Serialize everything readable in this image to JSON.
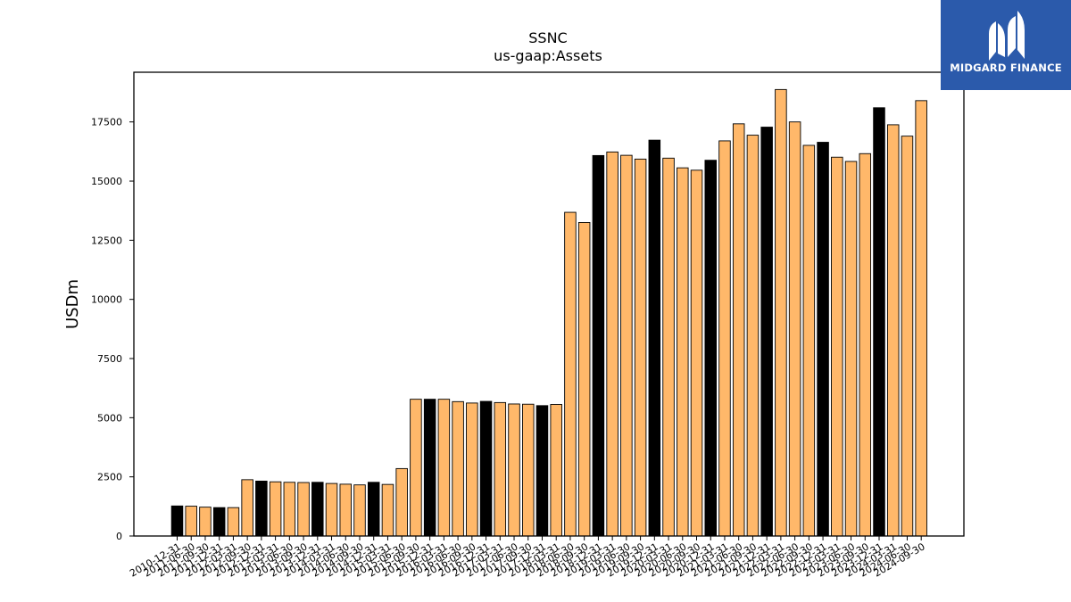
{
  "brand": {
    "name": "MIDGARD FINANCE",
    "background": "#2b5aab",
    "icon": "midgard-logo-icon"
  },
  "colors": {
    "quarter_bar": "#ffb86a",
    "year_end_bar": "#000000"
  },
  "chart_data": {
    "type": "bar",
    "title": "SSNC",
    "subtitle": "us-gaap:Assets",
    "xlabel": "",
    "ylabel": "USDm",
    "ylim": [
      0,
      19600
    ],
    "yticks": [
      0,
      2500,
      5000,
      7500,
      10000,
      12500,
      15000,
      17500
    ],
    "grid": false,
    "categories": [
      "2010-12-31",
      "2011-06-30",
      "2011-09-30",
      "2011-12-31",
      "2012-03-31",
      "2012-09-30",
      "2012-12-31",
      "2013-03-31",
      "2013-06-30",
      "2013-09-30",
      "2013-12-31",
      "2014-03-31",
      "2014-06-30",
      "2014-09-30",
      "2014-12-31",
      "2015-03-31",
      "2015-06-30",
      "2015-09-30",
      "2015-12-31",
      "2016-03-31",
      "2016-06-30",
      "2016-09-30",
      "2016-12-31",
      "2017-03-31",
      "2017-06-30",
      "2017-09-30",
      "2017-12-31",
      "2018-03-31",
      "2018-06-30",
      "2018-09-30",
      "2018-12-31",
      "2019-03-31",
      "2019-06-30",
      "2019-09-30",
      "2019-12-31",
      "2020-03-31",
      "2020-06-30",
      "2020-09-30",
      "2020-12-31",
      "2021-03-31",
      "2021-06-30",
      "2021-09-30",
      "2021-12-31",
      "2022-03-31",
      "2022-06-30",
      "2022-09-30",
      "2022-12-31",
      "2023-03-31",
      "2023-06-30",
      "2023-09-30",
      "2023-12-31",
      "2024-03-31",
      "2024-06-30",
      "2024-09-30"
    ],
    "values": [
      1270,
      1260,
      1220,
      1200,
      1200,
      2380,
      2320,
      2290,
      2270,
      2260,
      2270,
      2220,
      2190,
      2160,
      2270,
      2180,
      2850,
      5780,
      5780,
      5780,
      5680,
      5620,
      5690,
      5640,
      5580,
      5570,
      5510,
      5560,
      13680,
      13250,
      16080,
      16230,
      16090,
      15930,
      16730,
      15970,
      15560,
      15460,
      15880,
      16700,
      17420,
      16940,
      17280,
      18870,
      17500,
      16510,
      16640,
      16010,
      15830,
      16160,
      18100,
      17380,
      16900,
      18400
    ],
    "highlight": [
      true,
      false,
      false,
      true,
      false,
      false,
      true,
      false,
      false,
      false,
      true,
      false,
      false,
      false,
      true,
      false,
      false,
      false,
      true,
      false,
      false,
      false,
      true,
      false,
      false,
      false,
      true,
      false,
      false,
      false,
      true,
      false,
      false,
      false,
      true,
      false,
      false,
      false,
      true,
      false,
      false,
      false,
      true,
      false,
      false,
      false,
      true,
      false,
      false,
      false,
      true,
      false,
      false,
      false
    ]
  }
}
